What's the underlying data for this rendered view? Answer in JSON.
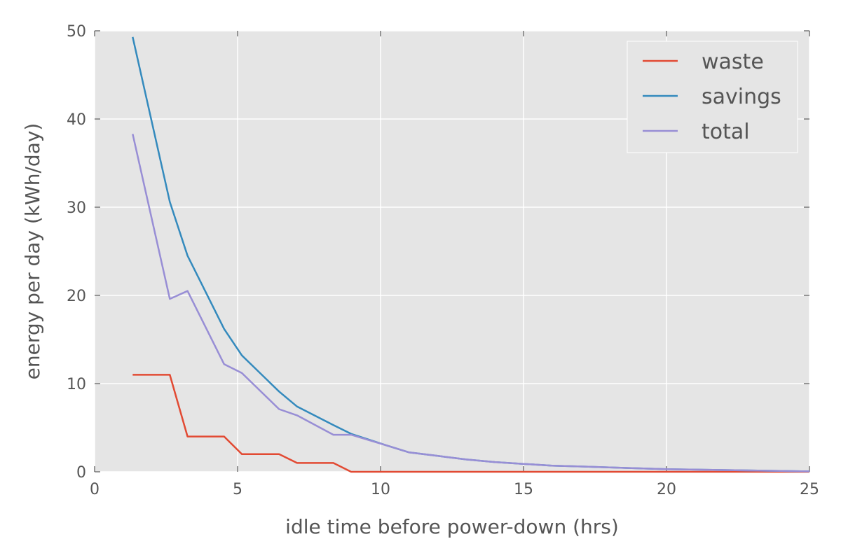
{
  "chart_data": {
    "type": "line",
    "title": "",
    "xlabel": "idle time before power-down (hrs)",
    "ylabel": "energy per day (kWh/day)",
    "xlim": [
      0,
      25
    ],
    "ylim": [
      0,
      50
    ],
    "xticks": [
      0,
      5,
      10,
      15,
      20,
      25
    ],
    "yticks": [
      0,
      10,
      20,
      30,
      40,
      50
    ],
    "grid": true,
    "legend_position": "top-right",
    "background_color": "#e5e5e5",
    "grid_color": "#ffffff",
    "series": [
      {
        "name": "waste",
        "color": "#e24a33",
        "x": [
          1.33,
          2.63,
          3.25,
          4.53,
          5.15,
          6.45,
          7.08,
          8.35,
          8.97,
          10.2,
          11.0,
          12.0,
          15.0,
          20.0,
          25.0
        ],
        "y": [
          11,
          11,
          4,
          4,
          2,
          2,
          1,
          1,
          0,
          0,
          0,
          0,
          0,
          0,
          0
        ]
      },
      {
        "name": "savings",
        "color": "#348abd",
        "x": [
          1.33,
          2.63,
          3.25,
          4.53,
          5.15,
          6.45,
          7.08,
          8.35,
          8.97,
          10.2,
          11.0,
          12.0,
          13.0,
          14.0,
          15.0,
          16.0,
          17.0,
          18.0,
          19.0,
          20.0,
          21.0,
          22.0,
          23.0,
          24.0,
          25.0
        ],
        "y": [
          49.3,
          30.6,
          24.5,
          16.2,
          13.2,
          9.1,
          7.4,
          5.3,
          4.3,
          3.0,
          2.2,
          1.8,
          1.4,
          1.1,
          0.9,
          0.7,
          0.6,
          0.5,
          0.4,
          0.3,
          0.25,
          0.2,
          0.15,
          0.1,
          0.05
        ]
      },
      {
        "name": "total",
        "color": "#988ed5",
        "x": [
          1.33,
          2.63,
          3.25,
          4.53,
          5.15,
          6.45,
          7.08,
          8.35,
          8.97,
          10.2,
          11.0,
          12.0,
          13.0,
          14.0,
          15.0,
          16.0,
          17.0,
          18.0,
          19.0,
          20.0,
          21.0,
          22.0,
          23.0,
          24.0,
          25.0
        ],
        "y": [
          38.3,
          19.6,
          20.5,
          12.2,
          11.2,
          7.1,
          6.4,
          4.2,
          4.2,
          3.0,
          2.2,
          1.8,
          1.4,
          1.1,
          0.9,
          0.7,
          0.6,
          0.5,
          0.4,
          0.3,
          0.25,
          0.2,
          0.15,
          0.1,
          0.05
        ]
      }
    ]
  }
}
